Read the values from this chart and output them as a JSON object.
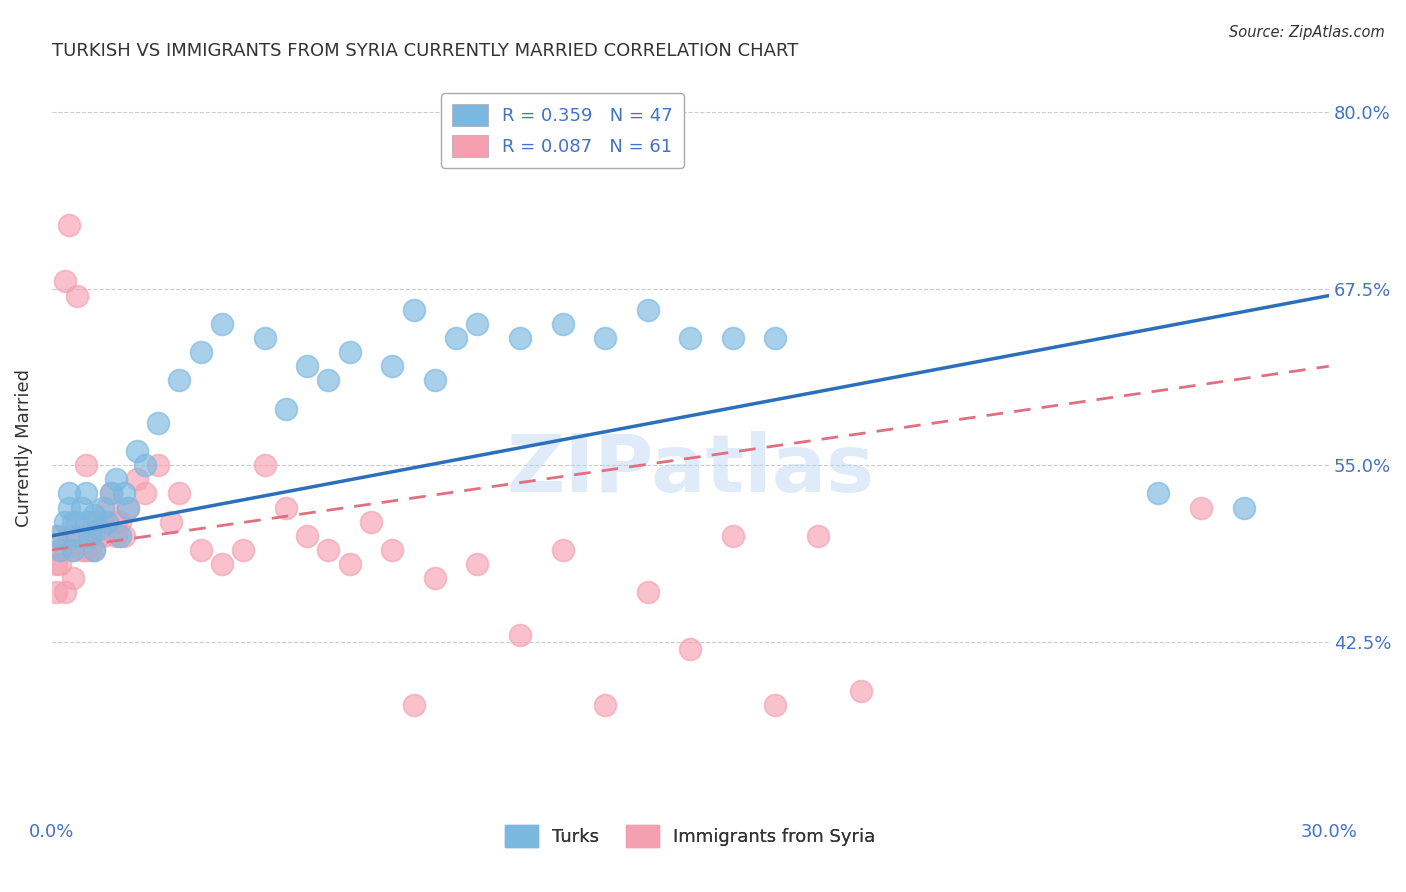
{
  "title": "TURKISH VS IMMIGRANTS FROM SYRIA CURRENTLY MARRIED CORRELATION CHART",
  "source": "Source: ZipAtlas.com",
  "ylabel": "Currently Married",
  "xlim": [
    0.0,
    0.3
  ],
  "ylim": [
    0.3,
    0.825
  ],
  "xticks": [
    0.0,
    0.3
  ],
  "xticklabels": [
    "0.0%",
    "30.0%"
  ],
  "yticks": [
    0.425,
    0.55,
    0.675,
    0.8
  ],
  "yticklabels": [
    "42.5%",
    "55.0%",
    "67.5%",
    "80.0%"
  ],
  "turks_color": "#7ab8e0",
  "syria_color": "#f5a0b0",
  "turks_R": 0.359,
  "turks_N": 47,
  "syria_R": 0.087,
  "syria_N": 61,
  "turks_line_color": "#2c6fba",
  "syria_line_color": "#e07080",
  "background_color": "#ffffff",
  "grid_color": "#cccccc",
  "title_color": "#333333",
  "axis_color": "#4472c4",
  "watermark": "ZIPatlas",
  "turks_x": [
    0.001,
    0.002,
    0.003,
    0.004,
    0.004,
    0.005,
    0.005,
    0.006,
    0.007,
    0.008,
    0.008,
    0.009,
    0.01,
    0.01,
    0.011,
    0.012,
    0.013,
    0.014,
    0.015,
    0.016,
    0.017,
    0.018,
    0.02,
    0.022,
    0.025,
    0.03,
    0.035,
    0.04,
    0.05,
    0.055,
    0.06,
    0.065,
    0.07,
    0.08,
    0.085,
    0.09,
    0.095,
    0.1,
    0.11,
    0.12,
    0.13,
    0.14,
    0.15,
    0.16,
    0.17,
    0.26,
    0.28
  ],
  "turks_y": [
    0.5,
    0.49,
    0.51,
    0.52,
    0.53,
    0.49,
    0.51,
    0.5,
    0.52,
    0.51,
    0.53,
    0.5,
    0.515,
    0.49,
    0.505,
    0.52,
    0.51,
    0.53,
    0.54,
    0.5,
    0.53,
    0.52,
    0.56,
    0.55,
    0.58,
    0.61,
    0.63,
    0.65,
    0.64,
    0.59,
    0.62,
    0.61,
    0.63,
    0.62,
    0.66,
    0.61,
    0.64,
    0.65,
    0.64,
    0.65,
    0.64,
    0.66,
    0.64,
    0.64,
    0.64,
    0.53,
    0.52
  ],
  "turks_line_x": [
    0.0,
    0.3
  ],
  "turks_line_y": [
    0.5,
    0.67
  ],
  "syria_line_x": [
    0.0,
    0.3
  ],
  "syria_line_y": [
    0.49,
    0.62
  ],
  "syria_x": [
    0.001,
    0.001,
    0.002,
    0.002,
    0.003,
    0.003,
    0.003,
    0.004,
    0.004,
    0.005,
    0.005,
    0.005,
    0.006,
    0.006,
    0.007,
    0.007,
    0.008,
    0.008,
    0.009,
    0.009,
    0.01,
    0.01,
    0.011,
    0.011,
    0.012,
    0.012,
    0.013,
    0.014,
    0.015,
    0.015,
    0.016,
    0.017,
    0.018,
    0.02,
    0.022,
    0.025,
    0.028,
    0.03,
    0.035,
    0.04,
    0.045,
    0.05,
    0.055,
    0.06,
    0.065,
    0.07,
    0.075,
    0.08,
    0.085,
    0.09,
    0.1,
    0.11,
    0.12,
    0.13,
    0.14,
    0.15,
    0.16,
    0.17,
    0.18,
    0.19,
    0.27
  ],
  "syria_y": [
    0.48,
    0.46,
    0.5,
    0.48,
    0.49,
    0.46,
    0.68,
    0.5,
    0.72,
    0.47,
    0.5,
    0.49,
    0.67,
    0.51,
    0.49,
    0.5,
    0.49,
    0.55,
    0.49,
    0.5,
    0.49,
    0.51,
    0.5,
    0.51,
    0.5,
    0.51,
    0.52,
    0.53,
    0.51,
    0.5,
    0.51,
    0.5,
    0.52,
    0.54,
    0.53,
    0.55,
    0.51,
    0.53,
    0.49,
    0.48,
    0.49,
    0.55,
    0.52,
    0.5,
    0.49,
    0.48,
    0.51,
    0.49,
    0.38,
    0.47,
    0.48,
    0.43,
    0.49,
    0.38,
    0.46,
    0.42,
    0.5,
    0.38,
    0.5,
    0.39,
    0.52
  ]
}
